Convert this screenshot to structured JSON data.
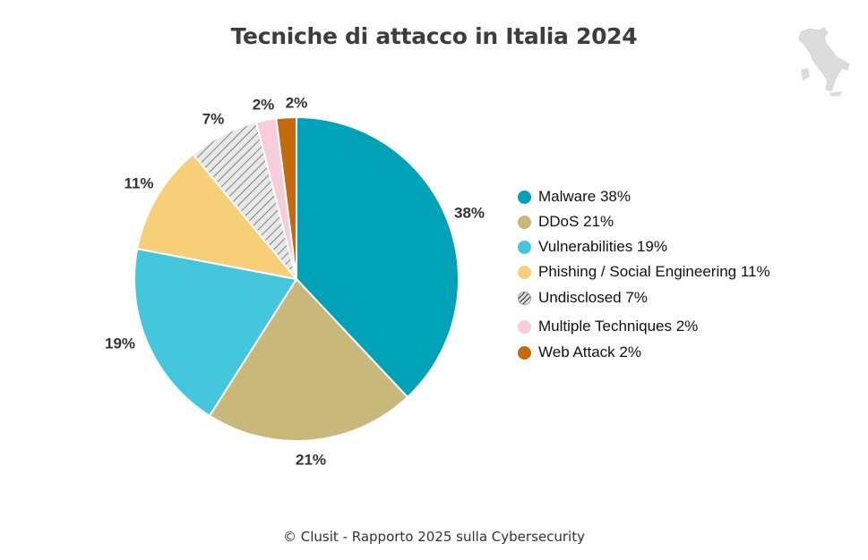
{
  "chart_data": {
    "type": "pie",
    "title": "Tecniche di attacco in Italia 2024",
    "slices": [
      {
        "name": "Malware",
        "value": 38,
        "label": "38%",
        "legend": "Malware 38%",
        "color": "#00a2b8"
      },
      {
        "name": "DDoS",
        "value": 21,
        "label": "21%",
        "legend": "DDoS 21%",
        "color": "#c8b879"
      },
      {
        "name": "Vulnerabilities",
        "value": 19,
        "label": "19%",
        "legend": "Vulnerabilities 19%",
        "color": "#44c6dc"
      },
      {
        "name": "Phishing / Social Engineering",
        "value": 11,
        "label": "11%",
        "legend": "Phishing / Social Engineering 11%",
        "color": "#f7cf79"
      },
      {
        "name": "Undisclosed",
        "value": 7,
        "label": "7%",
        "legend": "Undisclosed 7%",
        "color": "hatch"
      },
      {
        "name": "Multiple Techniques",
        "value": 2,
        "label": "2%",
        "legend": "Multiple Techniques 2%",
        "color": "#f6cdd9"
      },
      {
        "name": "Web Attack",
        "value": 2,
        "label": "2%",
        "legend": "Web Attack 2%",
        "color": "#c46a0c"
      }
    ],
    "legend_position": "right"
  },
  "footer": "© Clusit - Rapporto 2025 sulla Cybersecurity",
  "icons": {
    "corner": "italy-map-icon"
  }
}
